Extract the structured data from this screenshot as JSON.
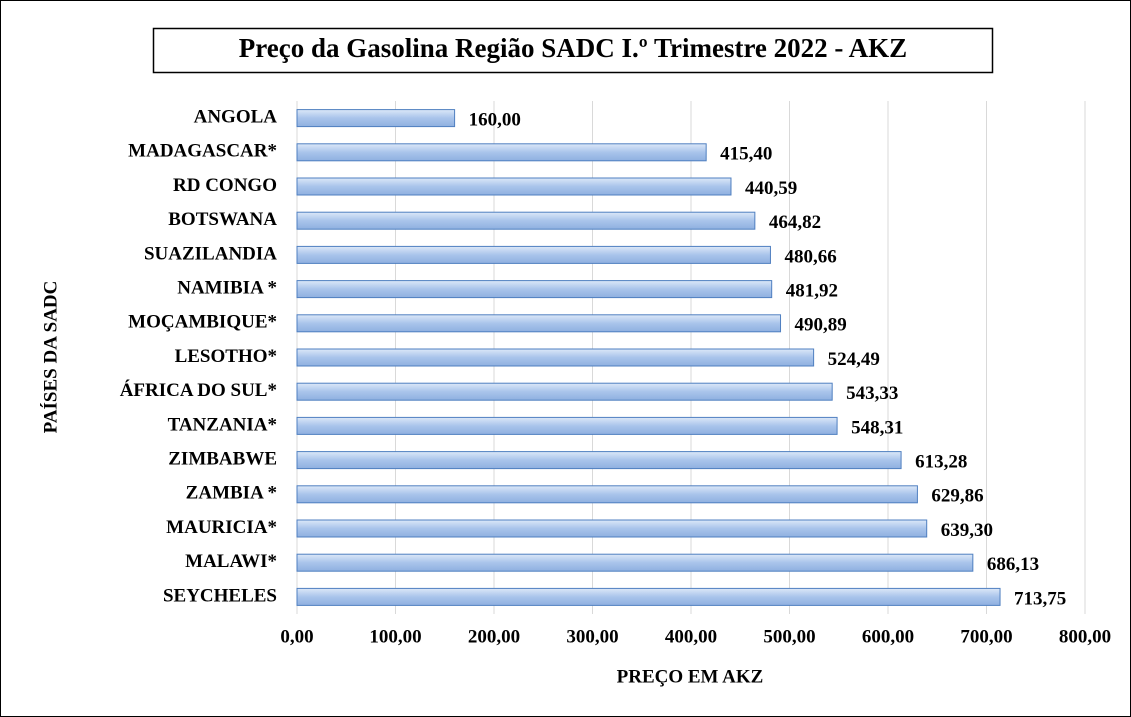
{
  "chart_data": {
    "type": "bar",
    "orientation": "horizontal",
    "title": "Preço da Gasolina Região SADC I.º Trimestre 2022 - AKZ",
    "xlabel": "PREÇO EM AKZ",
    "ylabel": "PAÍSES DA SADC",
    "categories": [
      "ANGOLA",
      "MADAGASCAR*",
      "RD CONGO",
      "BOTSWANA",
      "SUAZILANDIA",
      "NAMIBIA *",
      "MOÇAMBIQUE*",
      "LESOTHO*",
      "ÁFRICA DO SUL*",
      "TANZANIA*",
      "ZIMBABWE",
      "ZAMBIA *",
      "MAURICIA*",
      "MALAWI*",
      "SEYCHELES"
    ],
    "values": [
      160.0,
      415.4,
      440.59,
      464.82,
      480.66,
      481.92,
      490.89,
      524.49,
      543.33,
      548.31,
      613.28,
      629.86,
      639.3,
      686.13,
      713.75
    ],
    "value_labels": [
      "160,00",
      "415,40",
      "440,59",
      "464,82",
      "480,66",
      "481,92",
      "490,89",
      "524,49",
      "543,33",
      "548,31",
      "613,28",
      "629,86",
      "639,30",
      "686,13",
      "713,75"
    ],
    "color": "#a9c4eb",
    "xlim": [
      0,
      800
    ],
    "xticks": [
      {
        "value": 0,
        "label": "0,00"
      },
      {
        "value": 100,
        "label": "100,00"
      },
      {
        "value": 200,
        "label": "200,00"
      },
      {
        "value": 300,
        "label": "300,00"
      },
      {
        "value": 400,
        "label": "400,00"
      },
      {
        "value": 500,
        "label": "500,00"
      },
      {
        "value": 600,
        "label": "600,00"
      },
      {
        "value": 700,
        "label": "700,00"
      },
      {
        "value": 800,
        "label": "800,00"
      }
    ],
    "grid": true
  }
}
